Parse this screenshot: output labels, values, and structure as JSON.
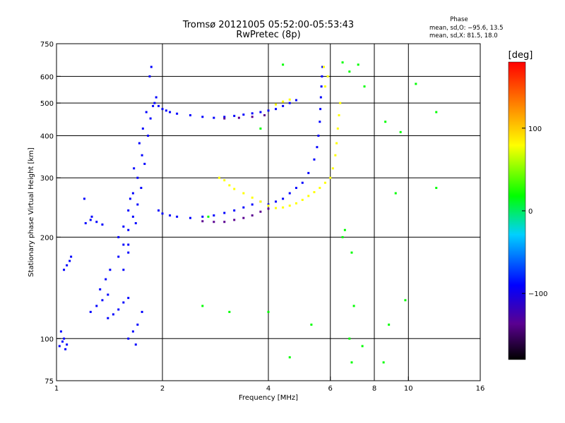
{
  "chart_data": {
    "type": "scatter",
    "title": "Tromsø 20121005 05:52:00-05:53:43",
    "subtitle": "RwPretec (8p)",
    "xlabel": "Frequency [MHz]",
    "ylabel": "Stationary phase Virtual Height [km]",
    "x_scale": "log",
    "y_scale": "log",
    "xlim": [
      1,
      16
    ],
    "ylim": [
      75,
      750
    ],
    "x_ticks": [
      1,
      2,
      4,
      6,
      8,
      10,
      16
    ],
    "x_tick_labels": [
      "1",
      "2",
      "4",
      "6",
      "8",
      "10",
      "16"
    ],
    "y_ticks": [
      75,
      100,
      200,
      300,
      400,
      500,
      600,
      750
    ],
    "y_tick_labels": [
      "75",
      "100",
      "200",
      "300",
      "400",
      "500",
      "600",
      "750"
    ],
    "x_gridlines": [
      2,
      4,
      6,
      8,
      10
    ],
    "y_gridlines": [
      100,
      200,
      300,
      400,
      500,
      600
    ],
    "grid": true,
    "phase_box": {
      "title": "Phase",
      "line_o": "mean, sd,O: −95.6, 13.5",
      "line_x": "mean, sd,X:  81.5, 18.0"
    },
    "colorbar": {
      "label": "[deg]",
      "range": [
        -180,
        180
      ],
      "ticks": [
        100,
        0,
        -100
      ],
      "tick_labels": [
        "100",
        "0",
        "−100"
      ],
      "colormap": "rainbow",
      "colors": [
        "#000000",
        "#5a0090",
        "#0000ff",
        "#00d0ff",
        "#00ff00",
        "#ffff00",
        "#ff8000",
        "#ff0000"
      ]
    },
    "series": [
      {
        "mode": "O",
        "phase_deg": -100,
        "points": [
          [
            1.02,
            95
          ],
          [
            1.04,
            98
          ],
          [
            1.06,
            93
          ],
          [
            1.03,
            105
          ],
          [
            1.05,
            100
          ],
          [
            1.07,
            96
          ],
          [
            1.05,
            160
          ],
          [
            1.07,
            165
          ],
          [
            1.09,
            170
          ],
          [
            1.1,
            175
          ],
          [
            1.21,
            220
          ],
          [
            1.25,
            225
          ],
          [
            1.3,
            222
          ],
          [
            1.35,
            218
          ],
          [
            1.2,
            260
          ],
          [
            1.26,
            230
          ],
          [
            1.25,
            120
          ],
          [
            1.3,
            125
          ],
          [
            1.35,
            130
          ],
          [
            1.4,
            135
          ],
          [
            1.33,
            140
          ],
          [
            1.38,
            150
          ],
          [
            1.4,
            115
          ],
          [
            1.45,
            118
          ],
          [
            1.5,
            122
          ],
          [
            1.55,
            128
          ],
          [
            1.6,
            132
          ],
          [
            1.42,
            160
          ],
          [
            1.5,
            175
          ],
          [
            1.55,
            190
          ],
          [
            1.6,
            210
          ],
          [
            1.65,
            230
          ],
          [
            1.7,
            250
          ],
          [
            1.5,
            200
          ],
          [
            1.55,
            215
          ],
          [
            1.6,
            240
          ],
          [
            1.65,
            270
          ],
          [
            1.7,
            300
          ],
          [
            1.75,
            350
          ],
          [
            1.6,
            190
          ],
          [
            1.62,
            260
          ],
          [
            1.66,
            320
          ],
          [
            1.72,
            380
          ],
          [
            1.76,
            420
          ],
          [
            1.8,
            470
          ],
          [
            1.55,
            160
          ],
          [
            1.6,
            180
          ],
          [
            1.68,
            220
          ],
          [
            1.74,
            280
          ],
          [
            1.78,
            330
          ],
          [
            1.82,
            400
          ],
          [
            1.85,
            450
          ],
          [
            1.88,
            490
          ],
          [
            1.9,
            500
          ],
          [
            1.92,
            520
          ],
          [
            1.84,
            600
          ],
          [
            1.86,
            640
          ],
          [
            1.6,
            100
          ],
          [
            1.65,
            105
          ],
          [
            1.68,
            96
          ],
          [
            1.7,
            110
          ],
          [
            1.75,
            120
          ],
          [
            1.95,
            490
          ],
          [
            2.0,
            480
          ],
          [
            2.05,
            475
          ],
          [
            2.1,
            470
          ],
          [
            2.2,
            465
          ],
          [
            2.4,
            460
          ],
          [
            2.6,
            455
          ],
          [
            2.8,
            452
          ],
          [
            3.0,
            455
          ],
          [
            3.2,
            458
          ],
          [
            3.4,
            462
          ],
          [
            3.6,
            466
          ],
          [
            3.8,
            470
          ],
          [
            4.0,
            475
          ],
          [
            4.2,
            480
          ],
          [
            4.4,
            490
          ],
          [
            4.6,
            500
          ],
          [
            4.8,
            510
          ],
          [
            1.95,
            240
          ],
          [
            2.0,
            235
          ],
          [
            2.1,
            232
          ],
          [
            2.2,
            230
          ],
          [
            2.4,
            228
          ],
          [
            2.6,
            230
          ],
          [
            2.8,
            232
          ],
          [
            3.0,
            236
          ],
          [
            3.2,
            240
          ],
          [
            3.4,
            245
          ],
          [
            3.6,
            250
          ],
          [
            3.8,
            255
          ],
          [
            4.0,
            250
          ],
          [
            4.2,
            255
          ],
          [
            4.4,
            260
          ],
          [
            4.6,
            270
          ],
          [
            4.8,
            280
          ],
          [
            5.0,
            290
          ],
          [
            5.2,
            310
          ],
          [
            5.4,
            340
          ],
          [
            5.5,
            370
          ],
          [
            5.55,
            400
          ],
          [
            5.6,
            440
          ],
          [
            5.62,
            480
          ],
          [
            5.64,
            520
          ],
          [
            5.66,
            560
          ],
          [
            5.68,
            600
          ],
          [
            5.7,
            640
          ]
        ]
      },
      {
        "mode": "O-low",
        "phase_deg": -140,
        "points": [
          [
            2.6,
            223
          ],
          [
            2.8,
            222
          ],
          [
            3.0,
            222
          ],
          [
            3.2,
            225
          ],
          [
            3.4,
            228
          ],
          [
            3.6,
            232
          ],
          [
            3.8,
            238
          ],
          [
            4.0,
            243
          ],
          [
            3.0,
            450
          ],
          [
            3.3,
            452
          ],
          [
            3.6,
            455
          ],
          [
            3.9,
            460
          ]
        ]
      },
      {
        "mode": "X",
        "phase_deg": 100,
        "points": [
          [
            2.9,
            300
          ],
          [
            3.0,
            295
          ],
          [
            3.1,
            285
          ],
          [
            3.2,
            278
          ],
          [
            3.4,
            270
          ],
          [
            3.6,
            262
          ],
          [
            3.8,
            255
          ],
          [
            4.0,
            248
          ],
          [
            4.2,
            244
          ],
          [
            4.4,
            245
          ],
          [
            4.6,
            248
          ],
          [
            4.8,
            252
          ],
          [
            5.0,
            258
          ],
          [
            5.2,
            265
          ],
          [
            5.4,
            272
          ],
          [
            5.6,
            280
          ],
          [
            5.8,
            290
          ],
          [
            6.0,
            300
          ],
          [
            6.1,
            320
          ],
          [
            6.2,
            350
          ],
          [
            6.25,
            380
          ],
          [
            6.3,
            420
          ],
          [
            6.35,
            460
          ],
          [
            6.4,
            500
          ],
          [
            5.8,
            560
          ],
          [
            5.9,
            600
          ],
          [
            5.75,
            640
          ],
          [
            4.2,
            495
          ],
          [
            4.4,
            505
          ],
          [
            4.6,
            512
          ]
        ]
      },
      {
        "mode": "scatter-other",
        "phase_deg": 0,
        "points": [
          [
            2.7,
            230
          ],
          [
            3.8,
            420
          ],
          [
            4.0,
            120
          ],
          [
            4.4,
            650
          ],
          [
            6.5,
            660
          ],
          [
            6.8,
            620
          ],
          [
            7.2,
            650
          ],
          [
            8.6,
            440
          ],
          [
            9.5,
            410
          ],
          [
            12,
            470
          ],
          [
            7.5,
            560
          ],
          [
            10.5,
            570
          ],
          [
            6.6,
            210
          ],
          [
            6.9,
            180
          ],
          [
            7.0,
            125
          ],
          [
            6.8,
            100
          ],
          [
            6.9,
            85
          ],
          [
            7.4,
            95
          ],
          [
            8.5,
            85
          ],
          [
            9.2,
            270
          ],
          [
            9.8,
            130
          ],
          [
            3.1,
            120
          ],
          [
            2.6,
            125
          ],
          [
            4.6,
            88
          ],
          [
            8.8,
            110
          ],
          [
            12,
            280
          ],
          [
            6.5,
            200
          ],
          [
            5.3,
            110
          ]
        ]
      }
    ]
  }
}
